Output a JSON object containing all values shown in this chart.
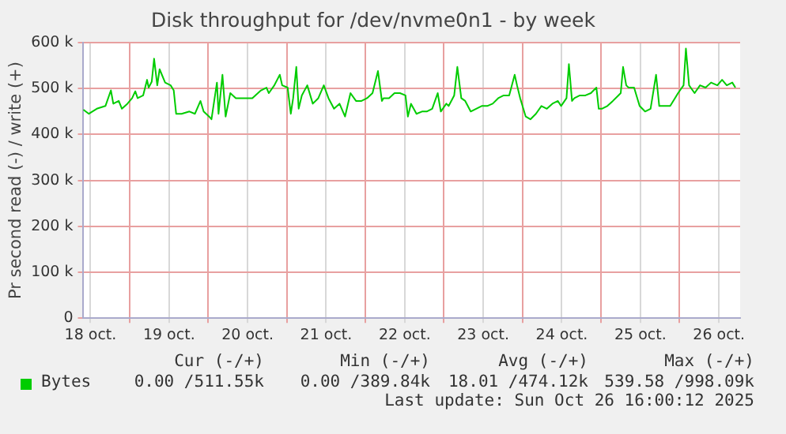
{
  "chart_data": {
    "type": "line",
    "title": "Disk throughput for /dev/nvme0n1 - by week",
    "ylabel": "Pr second read (-) / write (+)",
    "xlim": [
      "2025-10-18T09:36",
      "2025-10-26T18:29"
    ],
    "ylim": [
      0,
      600000
    ],
    "xticks": [
      {
        "value": "2025-10-18T12:00",
        "label": "18 oct."
      },
      {
        "value": "2025-10-19",
        "label": null
      },
      {
        "value": "2025-10-19T12:00",
        "label": "19 oct."
      },
      {
        "value": "2025-10-20",
        "label": null
      },
      {
        "value": "2025-10-20T12:00",
        "label": "20 oct."
      },
      {
        "value": "2025-10-21",
        "label": null
      },
      {
        "value": "2025-10-21T12:00",
        "label": "21 oct."
      },
      {
        "value": "2025-10-22",
        "label": null
      },
      {
        "value": "2025-10-22T12:00",
        "label": "22 oct."
      },
      {
        "value": "2025-10-23",
        "label": null
      },
      {
        "value": "2025-10-23T12:00",
        "label": "23 oct."
      },
      {
        "value": "2025-10-24",
        "label": null
      },
      {
        "value": "2025-10-24T12:00",
        "label": "24 oct."
      },
      {
        "value": "2025-10-25",
        "label": null
      },
      {
        "value": "2025-10-25T12:00",
        "label": "25 oct."
      },
      {
        "value": "2025-10-26",
        "label": null
      },
      {
        "value": "2025-10-26T12:00",
        "label": "26 oct."
      }
    ],
    "yticks": [
      0,
      {
        "value": 100000,
        "label": "100 k"
      },
      {
        "value": 200000,
        "label": "200 k"
      },
      {
        "value": 300000,
        "label": "300 k"
      },
      {
        "value": 400000,
        "label": "400 k"
      },
      {
        "value": 500000,
        "label": "500 k"
      },
      {
        "value": 600000,
        "label": "600 k"
      }
    ],
    "grid": true,
    "legend": "bottom",
    "marker": "none",
    "line_style": "solid",
    "series": [
      {
        "name": "Bytes",
        "color": "#00cc00",
        "x": [
          "2025-10-18T09:50",
          "2025-10-18T11:30",
          "2025-10-18T13:55",
          "2025-10-18T16:34",
          "2025-10-18T18:14",
          "2025-10-18T18:58",
          "2025-10-18T20:38",
          "2025-10-18T21:36",
          "2025-10-18T23:17",
          "2025-10-19T00:43",
          "2025-10-19T01:41",
          "2025-10-19T02:24",
          "2025-10-19T04:05",
          "2025-10-19T05:17",
          "2025-10-19T05:46",
          "2025-10-19T06:43",
          "2025-10-19T07:26",
          "2025-10-19T08:24",
          "2025-10-19T09:07",
          "2025-10-19T10:48",
          "2025-10-19T12:29",
          "2025-10-19T13:26",
          "2025-10-19T14:10",
          "2025-10-19T15:50",
          "2025-10-19T18:14",
          "2025-10-19T19:55",
          "2025-10-19T21:36",
          "2025-10-19T22:34",
          "2025-10-20T00:14",
          "2025-10-20T00:58",
          "2025-10-20T02:38",
          "2025-10-20T03:07",
          "2025-10-20T04:19",
          "2025-10-20T05:17",
          "2025-10-20T06:43",
          "2025-10-20T08:24",
          "2025-10-20T10:05",
          "2025-10-20T13:26",
          "2025-10-20T16:05",
          "2025-10-20T17:46",
          "2025-10-20T18:29",
          "2025-10-20T20:10",
          "2025-10-20T21:50",
          "2025-10-20T22:34",
          "2025-10-21T00:14",
          "2025-10-21T01:12",
          "2025-10-21T01:55",
          "2025-10-21T02:53",
          "2025-10-21T03:36",
          "2025-10-21T04:34",
          "2025-10-21T06:14",
          "2025-10-21T07:55",
          "2025-10-21T09:36",
          "2025-10-21T11:17",
          "2025-10-21T12:43",
          "2025-10-21T14:24",
          "2025-10-21T16:05",
          "2025-10-21T17:46",
          "2025-10-21T19:26",
          "2025-10-21T21:07",
          "2025-10-21T22:48",
          "2025-10-22T00:29",
          "2025-10-22T02:10",
          "2025-10-22T03:50",
          "2025-10-22T05:02",
          "2025-10-22T05:31",
          "2025-10-22T07:12",
          "2025-10-22T08:53",
          "2025-10-22T10:34",
          "2025-10-22T12:14",
          "2025-10-22T12:58",
          "2025-10-22T13:55",
          "2025-10-22T15:36",
          "2025-10-22T17:17",
          "2025-10-22T18:43",
          "2025-10-22T20:24",
          "2025-10-22T22:05",
          "2025-10-22T23:02",
          "2025-10-23T00:43",
          "2025-10-23T01:26",
          "2025-10-23T03:07",
          "2025-10-23T04:05",
          "2025-10-23T05:17",
          "2025-10-23T06:29",
          "2025-10-23T08:10",
          "2025-10-23T09:50",
          "2025-10-23T11:31",
          "2025-10-23T13:12",
          "2025-10-23T14:53",
          "2025-10-23T16:34",
          "2025-10-23T18:14",
          "2025-10-23T19:55",
          "2025-10-23T21:36",
          "2025-10-23T22:19",
          "2025-10-23T23:17",
          "2025-10-24T00:58",
          "2025-10-24T02:24",
          "2025-10-24T04:05",
          "2025-10-24T05:46",
          "2025-10-24T07:26",
          "2025-10-24T09:07",
          "2025-10-24T10:48",
          "2025-10-24T11:46",
          "2025-10-24T13:26",
          "2025-10-24T14:10",
          "2025-10-24T15:07",
          "2025-10-24T15:50",
          "2025-10-24T17:31",
          "2025-10-24T19:12",
          "2025-10-24T20:53",
          "2025-10-24T22:34",
          "2025-10-24T23:17",
          "2025-10-25T00:14",
          "2025-10-25T01:55",
          "2025-10-25T03:36",
          "2025-10-25T05:17",
          "2025-10-25T06:00",
          "2025-10-25T06:43",
          "2025-10-25T07:41",
          "2025-10-25T08:24",
          "2025-10-25T10:05",
          "2025-10-25T11:46",
          "2025-10-25T13:26",
          "2025-10-25T15:07",
          "2025-10-25T16:48",
          "2025-10-25T17:46",
          "2025-10-25T19:26",
          "2025-10-25T21:07",
          "2025-10-25T22:34",
          "2025-10-25T23:31",
          "2025-10-26T01:12",
          "2025-10-26T01:55",
          "2025-10-26T02:53",
          "2025-10-26T04:34",
          "2025-10-26T06:14",
          "2025-10-26T07:55",
          "2025-10-26T09:36",
          "2025-10-26T11:31",
          "2025-10-26T12:58",
          "2025-10-26T14:24",
          "2025-10-26T16:05",
          "2025-10-26T17:02"
        ],
        "values": [
          454000,
          445000,
          456000,
          462000,
          496000,
          467000,
          473000,
          456000,
          467000,
          479000,
          494000,
          479000,
          485000,
          519000,
          502000,
          515000,
          565000,
          507000,
          542000,
          513000,
          507000,
          496000,
          445000,
          445000,
          450000,
          445000,
          473000,
          450000,
          439000,
          433000,
          513000,
          445000,
          530000,
          439000,
          490000,
          479000,
          479000,
          479000,
          496000,
          502000,
          490000,
          507000,
          530000,
          507000,
          502000,
          445000,
          479000,
          547000,
          456000,
          485000,
          507000,
          467000,
          479000,
          507000,
          479000,
          456000,
          467000,
          439000,
          490000,
          473000,
          473000,
          479000,
          490000,
          538000,
          473000,
          479000,
          479000,
          490000,
          490000,
          485000,
          439000,
          467000,
          445000,
          450000,
          450000,
          456000,
          490000,
          450000,
          467000,
          462000,
          485000,
          547000,
          479000,
          473000,
          450000,
          456000,
          462000,
          462000,
          467000,
          479000,
          485000,
          485000,
          530000,
          507000,
          479000,
          439000,
          433000,
          445000,
          462000,
          456000,
          467000,
          473000,
          462000,
          479000,
          553000,
          473000,
          479000,
          485000,
          485000,
          490000,
          502000,
          456000,
          456000,
          462000,
          473000,
          485000,
          490000,
          547000,
          507000,
          502000,
          502000,
          462000,
          450000,
          456000,
          530000,
          462000,
          462000,
          462000,
          479000,
          490000,
          507000,
          587000,
          507000,
          490000,
          507000,
          502000,
          513000,
          507000,
          519000,
          507000,
          513000,
          502000
        ]
      }
    ],
    "annotations": [
      "Cur (-/+)",
      "Min (-/+)",
      "Avg (-/+)",
      "Max (-/+)",
      "0.00 /511.55k",
      "0.00 /389.84k",
      "18.01 /474.12k",
      "539.58 /998.09k",
      "Last update: Sun Oct 26 16:00:12 2025"
    ]
  }
}
